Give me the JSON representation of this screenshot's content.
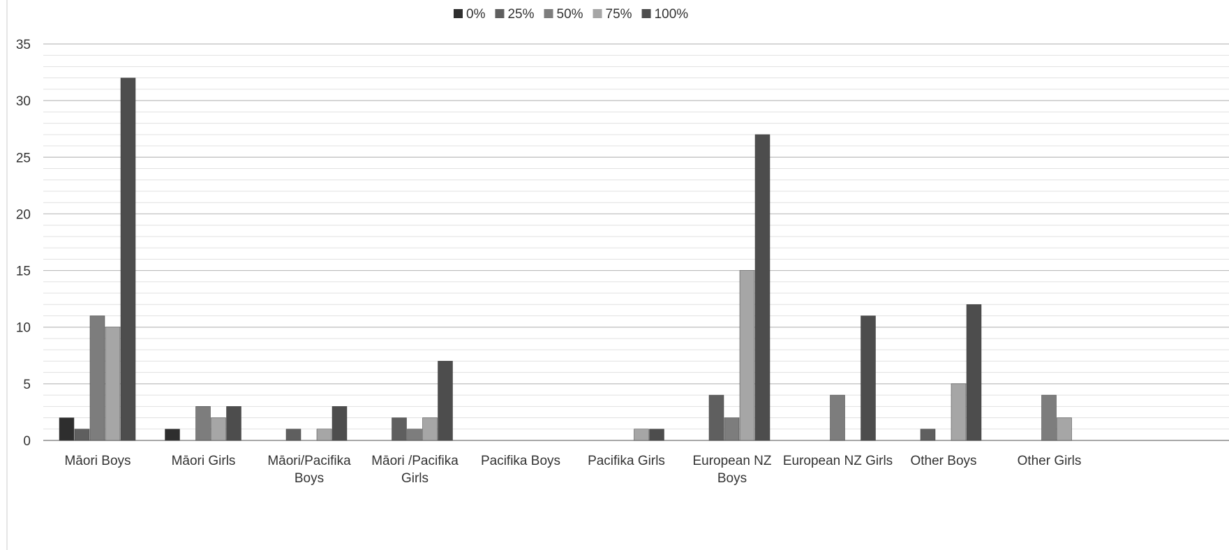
{
  "chart_data": {
    "type": "bar",
    "title": "",
    "xlabel": "",
    "ylabel": "",
    "ylim": [
      0,
      35
    ],
    "ytick_step": 5,
    "grid": true,
    "legend_position": "top-center",
    "categories": [
      "Māori Boys",
      "Māori Girls",
      "Māori/Pacifika Boys",
      "Māori /Pacifika Girls",
      "Pacifika Boys",
      "Pacifika Girls",
      "European NZ Boys",
      "European NZ Girls",
      "Other Boys",
      "Other Girls"
    ],
    "category_label_lines": [
      [
        "Māori Boys"
      ],
      [
        "Māori Girls"
      ],
      [
        "Māori/Pacifika",
        "Boys"
      ],
      [
        "Māori /Pacifika",
        "Girls"
      ],
      [
        "Pacifika Boys"
      ],
      [
        "Pacifika Girls"
      ],
      [
        "European NZ",
        "Boys"
      ],
      [
        "European NZ Girls"
      ],
      [
        "Other Boys"
      ],
      [
        "Other Girls"
      ]
    ],
    "series": [
      {
        "name": "0%",
        "color": "#2e2e2e",
        "values": [
          2,
          1,
          0,
          0,
          0,
          0,
          0,
          0,
          0,
          0
        ]
      },
      {
        "name": "25%",
        "color": "#5f5f5f",
        "values": [
          1,
          0,
          1,
          2,
          0,
          0,
          4,
          0,
          1,
          0
        ]
      },
      {
        "name": "50%",
        "color": "#7d7d7d",
        "values": [
          11,
          3,
          0,
          1,
          0,
          0,
          2,
          4,
          0,
          4
        ]
      },
      {
        "name": "75%",
        "color": "#a6a6a6",
        "values": [
          10,
          2,
          1,
          2,
          0,
          1,
          15,
          0,
          5,
          2
        ]
      },
      {
        "name": "100%",
        "color": "#4d4d4d",
        "values": [
          32,
          3,
          3,
          7,
          0,
          1,
          27,
          11,
          12,
          0
        ]
      }
    ]
  }
}
